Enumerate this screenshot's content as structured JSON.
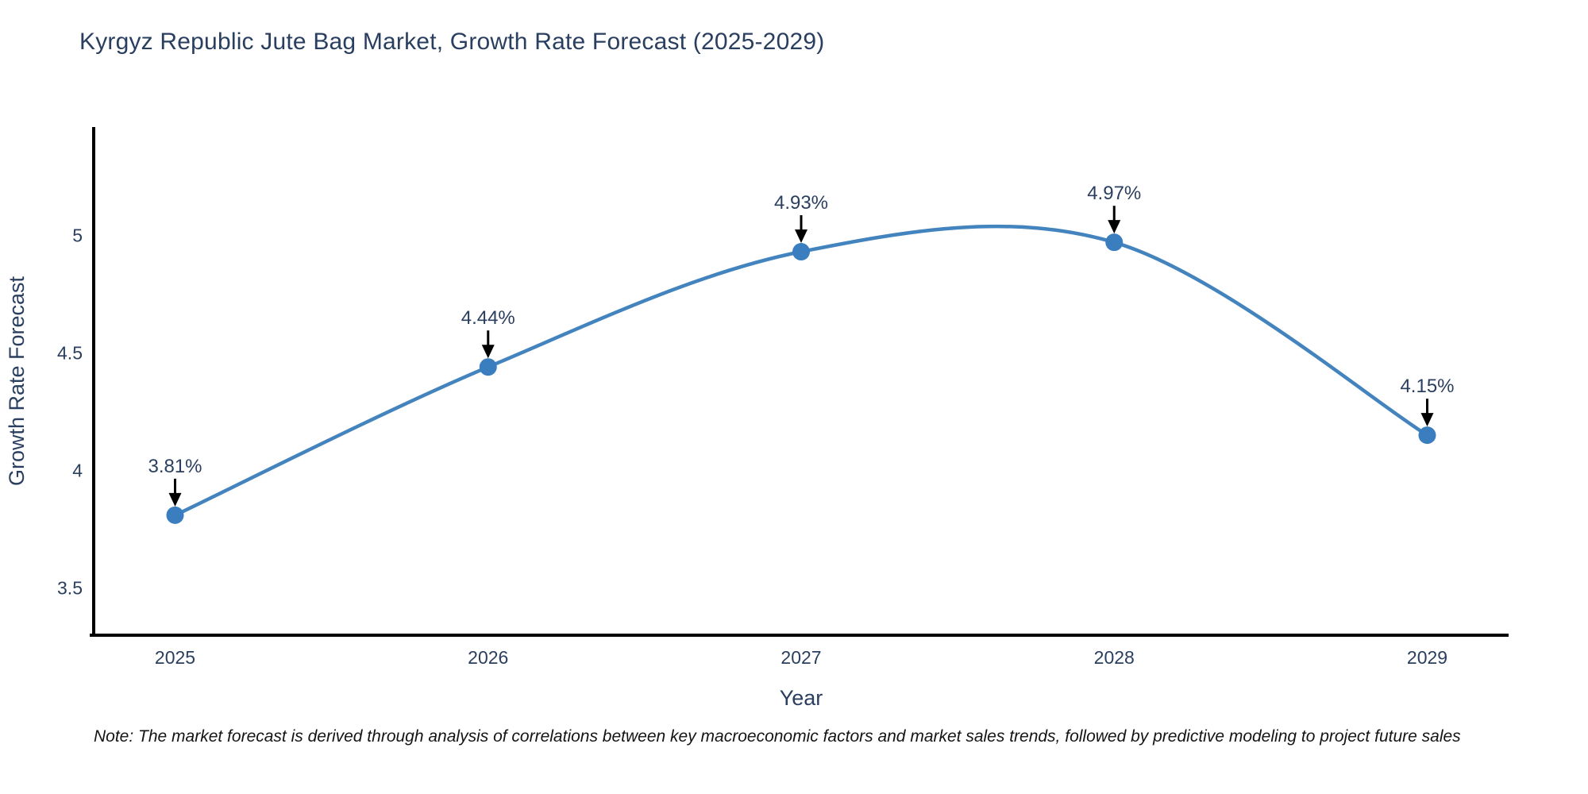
{
  "chart_data": {
    "type": "line",
    "title": "Kyrgyz Republic Jute Bag Market, Growth Rate Forecast (2025-2029)",
    "xlabel": "Year",
    "ylabel": "Growth Rate Forecast",
    "x": [
      2025,
      2026,
      2027,
      2028,
      2029
    ],
    "values": [
      3.81,
      4.44,
      4.93,
      4.97,
      4.15
    ],
    "point_labels": [
      "3.81%",
      "4.44%",
      "4.93%",
      "4.97%",
      "4.15%"
    ],
    "xticks": [
      "2025",
      "2026",
      "2027",
      "2028",
      "2029"
    ],
    "yticks": [
      "3.5",
      "4",
      "4.5",
      "5"
    ],
    "xlim": [
      2024.74,
      2029.26
    ],
    "ylim": [
      3.3,
      5.46
    ],
    "line_shape": "spline",
    "grid": false,
    "legend": "none",
    "colors": {
      "line": "#4484be",
      "marker": "#3a7ebf",
      "axis": "#000000",
      "text": "#2a3f5f",
      "annotation_text": "#2a3f5f",
      "annotation_arrow": "#000000",
      "background": "#ffffff"
    }
  },
  "note": "Note: The market forecast is derived through analysis of correlations between key macroeconomic factors and market sales trends, followed by predictive modeling to project future sales"
}
